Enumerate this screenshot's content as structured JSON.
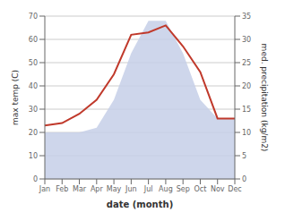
{
  "chart_data": {
    "type": "line",
    "categories": [
      "Jan",
      "Feb",
      "Mar",
      "Apr",
      "May",
      "Jun",
      "Jul",
      "Aug",
      "Sep",
      "Oct",
      "Nov",
      "Dec"
    ],
    "series": [
      {
        "type": "area",
        "color": "#c5cfe8",
        "axis": "y2",
        "values": [
          10,
          10,
          10,
          11,
          17,
          27,
          34,
          34,
          27,
          17,
          13,
          13
        ]
      },
      {
        "type": "line",
        "color": "#c0392b",
        "values": [
          23,
          24,
          28,
          34,
          45,
          62,
          63,
          66,
          57,
          46,
          26,
          26
        ]
      }
    ],
    "xlabel": "date (month)",
    "ylabel": "max temp (C)",
    "y2label": "med. precipitation (kg/m2)",
    "ylim": [
      0,
      70
    ],
    "yticks": [
      0,
      10,
      20,
      30,
      40,
      50,
      60,
      70
    ],
    "y2lim": [
      0,
      35
    ],
    "y2ticks": [
      0,
      5,
      10,
      15,
      20,
      25,
      30,
      35
    ],
    "grid": true
  }
}
